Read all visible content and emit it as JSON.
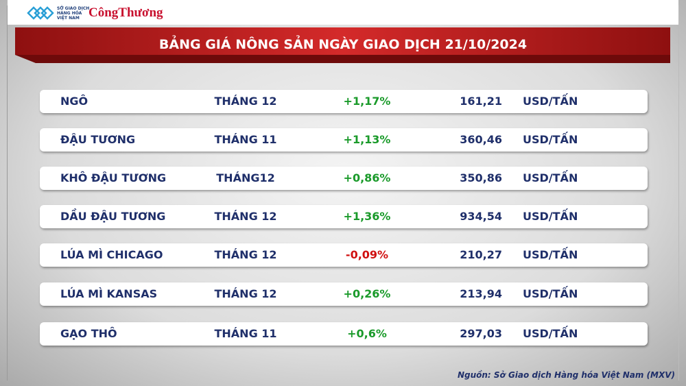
{
  "header": {
    "logo_lines": [
      "SỞ GIAO DỊCH",
      "HÀNG HÓA",
      "VIỆT NAM"
    ],
    "brand": "CôngThương",
    "title": "BẢNG GIÁ NÔNG SẢN NGÀY GIAO DỊCH 21/10/2024"
  },
  "table": {
    "rows": [
      [
        "NGÔ",
        "THÁNG 12",
        "+1,17%",
        "161,21",
        "USD/TẤN"
      ],
      [
        "ĐẬU TƯƠNG",
        "THÁNG 11",
        "+1,13%",
        "360,46",
        "USD/TẤN"
      ],
      [
        "KHÔ ĐẬU TƯƠNG",
        "THÁNG12",
        "+0,86%",
        "350,86",
        "USD/TẤN"
      ],
      [
        "DẦU ĐẬU TƯƠNG",
        "THÁNG 12",
        "+1,36%",
        "934,54",
        "USD/TẤN"
      ],
      [
        "LÚA MÌ CHICAGO",
        "THÁNG 12",
        "-0,09%",
        "210,27",
        "USD/TẤN"
      ],
      [
        "LÚA MÌ KANSAS",
        "THÁNG 12",
        "+0,26%",
        "213,94",
        "USD/TẤN"
      ],
      [
        "GẠO THÔ",
        "THÁNG 11",
        "+0,6%",
        "297,03",
        "USD/TẤN"
      ]
    ],
    "change_colors": [
      "#1a9a2a",
      "#1a9a2a",
      "#1a9a2a",
      "#1a9a2a",
      "#d01010",
      "#1a9a2a",
      "#1a9a2a"
    ]
  },
  "footer": {
    "source": "Nguồn: Sở Giao dịch Hàng hóa Việt Nam (MXV)"
  }
}
